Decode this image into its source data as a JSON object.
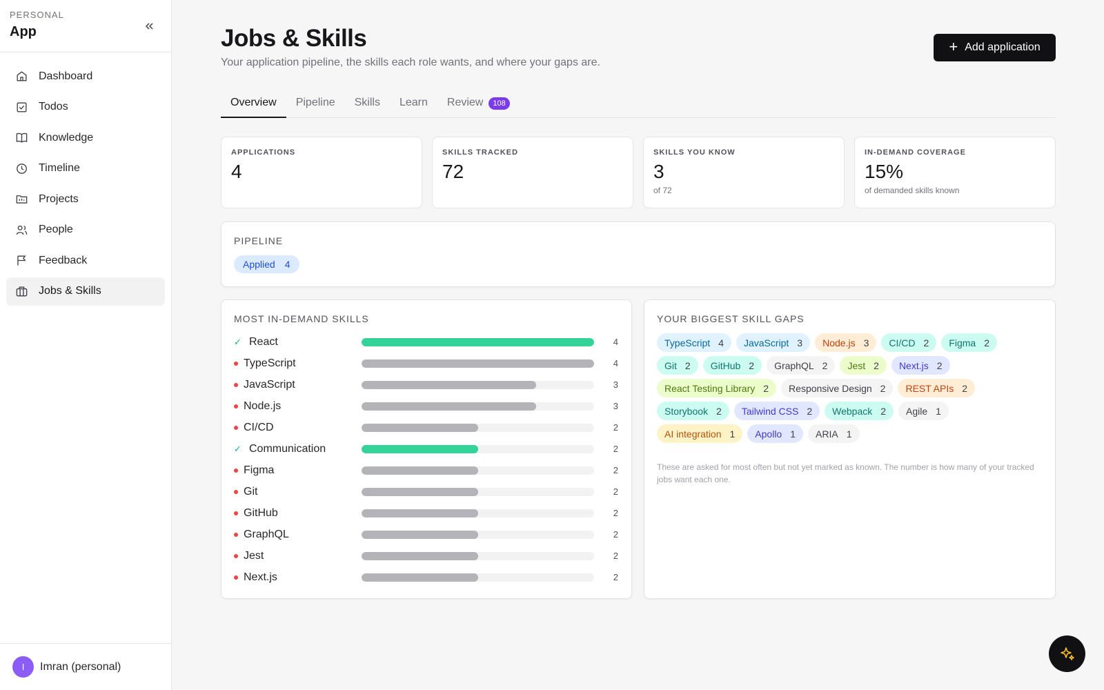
{
  "sidebar": {
    "kicker": "PERSONAL",
    "app_name": "App",
    "items": [
      {
        "label": "Dashboard",
        "icon": "home-icon"
      },
      {
        "label": "Todos",
        "icon": "checkbox-icon"
      },
      {
        "label": "Knowledge",
        "icon": "book-icon"
      },
      {
        "label": "Timeline",
        "icon": "clock-icon"
      },
      {
        "label": "Projects",
        "icon": "folder-icon"
      },
      {
        "label": "People",
        "icon": "people-icon"
      },
      {
        "label": "Feedback",
        "icon": "flag-icon"
      },
      {
        "label": "Jobs & Skills",
        "icon": "briefcase-icon",
        "active": true
      }
    ],
    "user": {
      "initial": "I",
      "name": "Imran (personal)"
    }
  },
  "header": {
    "title": "Jobs & Skills",
    "subtitle": "Your application pipeline, the skills each role wants, and where your gaps are.",
    "add_button": "Add application"
  },
  "tabs": [
    {
      "label": "Overview",
      "active": true
    },
    {
      "label": "Pipeline"
    },
    {
      "label": "Skills"
    },
    {
      "label": "Learn"
    },
    {
      "label": "Review",
      "badge": "108"
    }
  ],
  "stats": [
    {
      "label": "APPLICATIONS",
      "value": "4",
      "sub": ""
    },
    {
      "label": "SKILLS TRACKED",
      "value": "72",
      "sub": ""
    },
    {
      "label": "SKILLS YOU KNOW",
      "value": "3",
      "sub": "of 72"
    },
    {
      "label": "IN-DEMAND COVERAGE",
      "value": "15%",
      "sub": "of demanded skills known"
    }
  ],
  "pipeline": {
    "title": "PIPELINE",
    "stage": {
      "label": "Applied",
      "count": "4"
    }
  },
  "demand": {
    "title": "MOST IN-DEMAND SKILLS",
    "max": 4,
    "skills": [
      {
        "name": "React",
        "count": 4,
        "known": true
      },
      {
        "name": "TypeScript",
        "count": 4,
        "known": false
      },
      {
        "name": "JavaScript",
        "count": 3,
        "known": false
      },
      {
        "name": "Node.js",
        "count": 3,
        "known": false
      },
      {
        "name": "CI/CD",
        "count": 2,
        "known": false
      },
      {
        "name": "Communication",
        "count": 2,
        "known": true
      },
      {
        "name": "Figma",
        "count": 2,
        "known": false
      },
      {
        "name": "Git",
        "count": 2,
        "known": false
      },
      {
        "name": "GitHub",
        "count": 2,
        "known": false
      },
      {
        "name": "GraphQL",
        "count": 2,
        "known": false
      },
      {
        "name": "Jest",
        "count": 2,
        "known": false
      },
      {
        "name": "Next.js",
        "count": 2,
        "known": false
      }
    ]
  },
  "gaps": {
    "title": "YOUR BIGGEST SKILL GAPS",
    "chips": [
      {
        "name": "TypeScript",
        "count": "4",
        "bg": "#e0f2fe",
        "fg": "#0369a1"
      },
      {
        "name": "JavaScript",
        "count": "3",
        "bg": "#e0f2fe",
        "fg": "#0369a1"
      },
      {
        "name": "Node.js",
        "count": "3",
        "bg": "#ffedd5",
        "fg": "#c2410c"
      },
      {
        "name": "CI/CD",
        "count": "2",
        "bg": "#ccfbf1",
        "fg": "#0f766e"
      },
      {
        "name": "Figma",
        "count": "2",
        "bg": "#ccfbf1",
        "fg": "#0f766e"
      },
      {
        "name": "Git",
        "count": "2",
        "bg": "#ccfbf1",
        "fg": "#0f766e"
      },
      {
        "name": "GitHub",
        "count": "2",
        "bg": "#ccfbf1",
        "fg": "#0f766e"
      },
      {
        "name": "GraphQL",
        "count": "2",
        "bg": "#f4f4f5",
        "fg": "#3f3f46"
      },
      {
        "name": "Jest",
        "count": "2",
        "bg": "#ecfccb",
        "fg": "#4d7c0f"
      },
      {
        "name": "Next.js",
        "count": "2",
        "bg": "#e0e7ff",
        "fg": "#4338ca"
      },
      {
        "name": "React Testing Library",
        "count": "2",
        "bg": "#ecfccb",
        "fg": "#4d7c0f"
      },
      {
        "name": "Responsive Design",
        "count": "2",
        "bg": "#f4f4f5",
        "fg": "#3f3f46"
      },
      {
        "name": "REST APIs",
        "count": "2",
        "bg": "#ffedd5",
        "fg": "#c2410c"
      },
      {
        "name": "Storybook",
        "count": "2",
        "bg": "#ccfbf1",
        "fg": "#0f766e"
      },
      {
        "name": "Tailwind CSS",
        "count": "2",
        "bg": "#e0e7ff",
        "fg": "#4338ca"
      },
      {
        "name": "Webpack",
        "count": "2",
        "bg": "#ccfbf1",
        "fg": "#0f766e"
      },
      {
        "name": "Agile",
        "count": "1",
        "bg": "#f4f4f5",
        "fg": "#3f3f46"
      },
      {
        "name": "AI integration",
        "count": "1",
        "bg": "#fef3c7",
        "fg": "#b45309"
      },
      {
        "name": "Apollo",
        "count": "1",
        "bg": "#e0e7ff",
        "fg": "#4338ca"
      },
      {
        "name": "ARIA",
        "count": "1",
        "bg": "#f4f4f5",
        "fg": "#3f3f46"
      }
    ],
    "note": "These are asked for most often but not yet marked as known. The number is how many of your tracked jobs want each one."
  },
  "colors": {
    "accent": "#7c3aed",
    "known_bar": "#34d399",
    "gap_bar": "#b4b4b8",
    "gap_dot": "#ef4444"
  },
  "fab": {
    "icon": "sparkle-icon"
  }
}
